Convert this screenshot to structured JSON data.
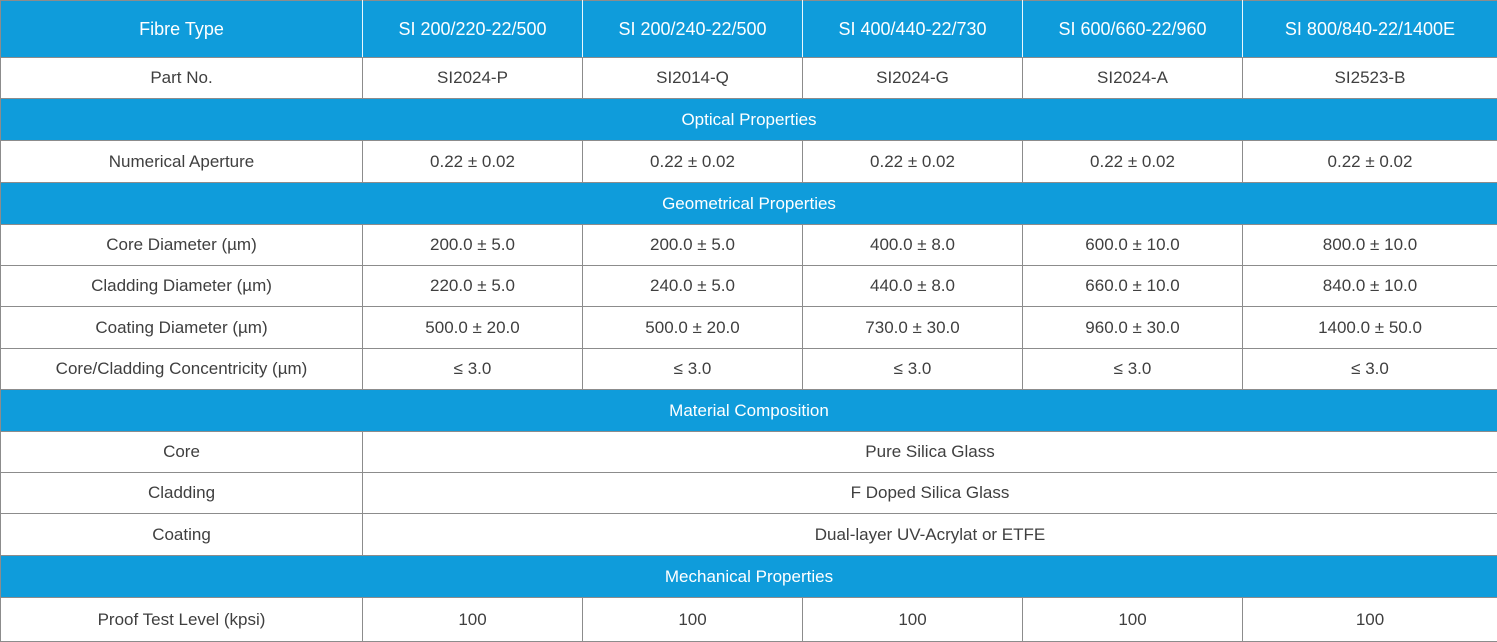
{
  "colors": {
    "accent_blue": "#0f9cdb",
    "header_text": "#ffffff",
    "body_text": "#3f3f3f",
    "border_gray": "#8c8c8c"
  },
  "table": {
    "corner_label": "Fibre Type",
    "columns": [
      "SI 200/220-22/500",
      "SI 200/240-22/500",
      "SI 400/440-22/730",
      "SI 600/660-22/960",
      "SI 800/840-22/1400E"
    ],
    "part_no": {
      "label": "Part No.",
      "values": [
        "SI2024-P",
        "SI2014-Q",
        "SI2024-G",
        "SI2024-A",
        "SI2523-B"
      ]
    },
    "optical": {
      "title": "Optical Properties",
      "numerical_aperture": {
        "label": "Numerical Aperture",
        "values": [
          "0.22 ± 0.02",
          "0.22 ± 0.02",
          "0.22 ± 0.02",
          "0.22 ± 0.02",
          "0.22 ± 0.02"
        ]
      }
    },
    "geometrical": {
      "title": "Geometrical Properties",
      "core_diameter": {
        "label": "Core Diameter (µm)",
        "values": [
          "200.0 ± 5.0",
          "200.0 ± 5.0",
          "400.0 ± 8.0",
          "600.0 ± 10.0",
          "800.0 ± 10.0"
        ]
      },
      "cladding_diameter": {
        "label": "Cladding Diameter (µm)",
        "values": [
          "220.0 ± 5.0",
          "240.0 ± 5.0",
          "440.0 ± 8.0",
          "660.0 ± 10.0",
          "840.0 ± 10.0"
        ]
      },
      "coating_diameter": {
        "label": "Coating Diameter (µm)",
        "values": [
          "500.0 ± 20.0",
          "500.0 ± 20.0",
          "730.0 ± 30.0",
          "960.0 ± 30.0",
          "1400.0 ± 50.0"
        ]
      },
      "concentricity": {
        "label": "Core/Cladding Concentricity (µm)",
        "values": [
          "≤ 3.0",
          "≤ 3.0",
          "≤ 3.0",
          "≤ 3.0",
          "≤ 3.0"
        ]
      }
    },
    "material": {
      "title": "Material Composition",
      "core": {
        "label": "Core",
        "value": "Pure Silica Glass"
      },
      "cladding": {
        "label": "Cladding",
        "value": "F Doped Silica Glass"
      },
      "coating": {
        "label": "Coating",
        "value": "Dual-layer UV-Acrylat or ETFE"
      }
    },
    "mechanical": {
      "title": "Mechanical Properties",
      "proof_test": {
        "label": "Proof Test Level (kpsi)",
        "values": [
          "100",
          "100",
          "100",
          "100",
          "100"
        ]
      }
    }
  }
}
